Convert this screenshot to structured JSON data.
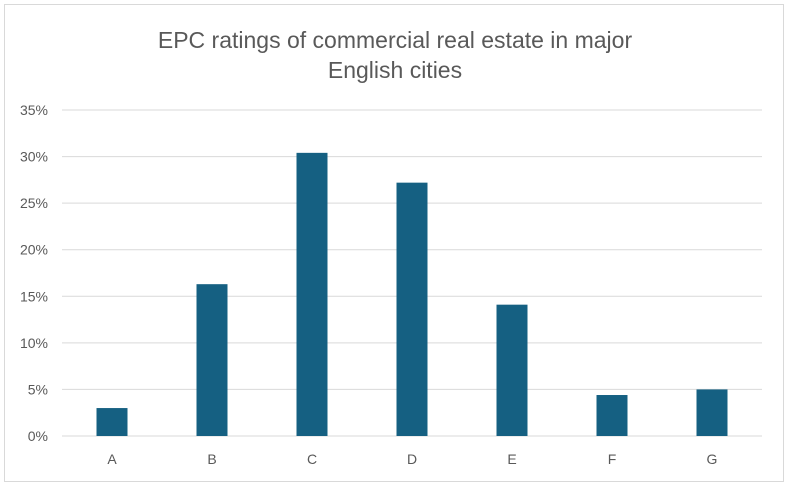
{
  "chart_data": {
    "type": "bar",
    "title_lines": [
      "EPC ratings of commercial real estate in major",
      "English cities"
    ],
    "categories": [
      "A",
      "B",
      "C",
      "D",
      "E",
      "F",
      "G"
    ],
    "values": [
      3.0,
      16.3,
      30.4,
      27.2,
      14.1,
      4.4,
      5.0
    ],
    "y_ticks": [
      "0%",
      "5%",
      "10%",
      "15%",
      "20%",
      "25%",
      "30%",
      "35%"
    ],
    "ylim": [
      0,
      35
    ],
    "ytick_step": 5,
    "xlabel": "",
    "ylabel": "",
    "grid": true,
    "legend": "none",
    "bar_color": "#156082",
    "grid_color": "#d9d9d9"
  }
}
